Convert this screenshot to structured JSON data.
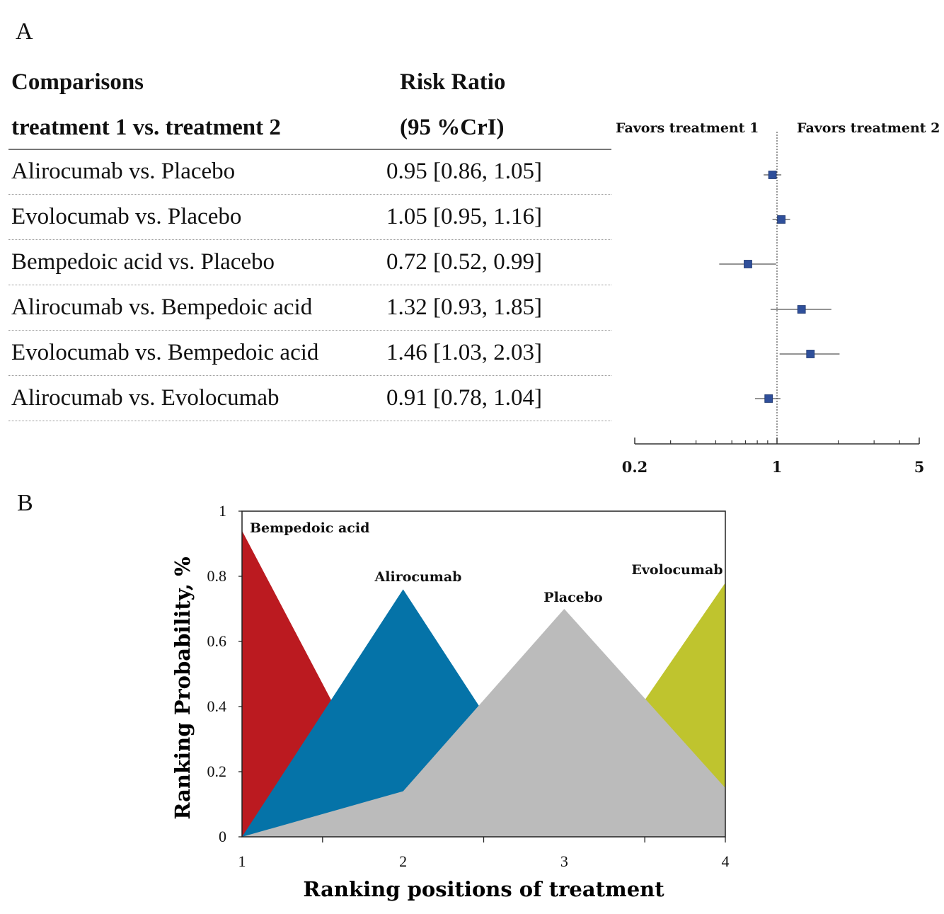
{
  "panel_a": {
    "letter": "A",
    "col1_header": [
      "Comparisons",
      "treatment 1 vs. treatment 2"
    ],
    "col2_header": [
      "Risk Ratio",
      "(95 %CrI)"
    ],
    "favors_left": "Favors treatment 1",
    "favors_right": "Favors treatment 2",
    "rows": [
      {
        "comparison": "Alirocumab vs. Placebo",
        "estimate": "0.95 [0.86, 1.05]"
      },
      {
        "comparison": "Evolocumab vs. Placebo",
        "estimate": "1.05 [0.95, 1.16]"
      },
      {
        "comparison": "Bempedoic acid vs. Placebo",
        "estimate": "0.72 [0.52, 0.99]"
      },
      {
        "comparison": "Alirocumab vs. Bempedoic acid",
        "estimate": "1.32 [0.93, 1.85]"
      },
      {
        "comparison": "Evolocumab vs. Bempedoic acid",
        "estimate": "1.46 [1.03, 2.03]"
      },
      {
        "comparison": "Alirocumab vs. Evolocumab",
        "estimate": "0.91 [0.78, 1.04]"
      }
    ]
  },
  "panel_b": {
    "letter": "B"
  },
  "colors": {
    "marker": "#2f4f9a",
    "bempedoic": "#bb1a20",
    "alirocumab": "#0573a8",
    "placebo": "#bbbbbb",
    "evolocumab": "#bfc42e"
  },
  "chart_data": [
    {
      "type": "forest",
      "scale": "log",
      "xlim": [
        0.2,
        5
      ],
      "xticks": [
        0.2,
        1,
        5
      ],
      "xtick_labels": [
        "0.2",
        "1",
        "5"
      ],
      "reference": 1,
      "points": [
        {
          "rr": 0.95,
          "lo": 0.86,
          "hi": 1.05
        },
        {
          "rr": 1.05,
          "lo": 0.95,
          "hi": 1.16
        },
        {
          "rr": 0.72,
          "lo": 0.52,
          "hi": 0.99
        },
        {
          "rr": 1.32,
          "lo": 0.93,
          "hi": 1.85
        },
        {
          "rr": 1.46,
          "lo": 1.03,
          "hi": 2.03
        },
        {
          "rr": 0.91,
          "lo": 0.78,
          "hi": 1.04
        }
      ]
    },
    {
      "type": "area",
      "xlabel": "Ranking positions of treatment",
      "ylabel": "Ranking Probability, %",
      "x": [
        1,
        2,
        3,
        4
      ],
      "xticks": [
        "1",
        "2",
        "3",
        "4"
      ],
      "ylim": [
        0,
        1
      ],
      "yticks": [
        "0",
        "0.2",
        "0.4",
        "0.6",
        "0.8",
        "1"
      ],
      "series": [
        {
          "name": "Bempedoic acid",
          "values": [
            0.94,
            0.0,
            0.0,
            0.0
          ]
        },
        {
          "name": "Alirocumab",
          "values": [
            0.0,
            0.76,
            0.0,
            0.0
          ]
        },
        {
          "name": "Evolocumab",
          "values": [
            0.0,
            0.0,
            0.06,
            0.78
          ]
        },
        {
          "name": "Placebo",
          "values": [
            0.0,
            0.14,
            0.7,
            0.15
          ]
        }
      ]
    }
  ]
}
